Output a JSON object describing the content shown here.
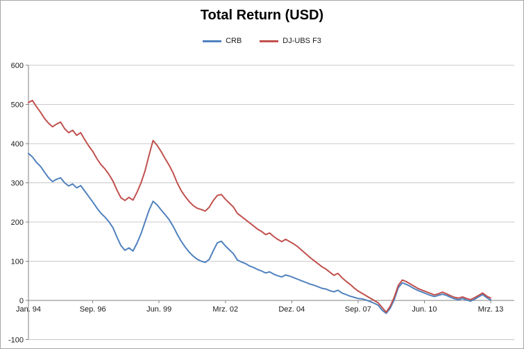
{
  "chart_data": {
    "type": "line",
    "title": "Total Return (USD)",
    "grid": true,
    "legend_position": "top",
    "ylim": [
      -100,
      600
    ],
    "y_ticks": [
      600,
      500,
      400,
      300,
      200,
      100,
      0,
      -100
    ],
    "xlim_months": [
      0,
      230
    ],
    "x_step_months": 2,
    "x_tick_months": [
      0,
      32,
      65,
      98,
      131,
      164,
      197,
      230
    ],
    "x_tick_labels": [
      "Jan. 94",
      "Sep. 96",
      "Jun. 99",
      "Mrz. 02",
      "Dez. 04",
      "Sep. 07",
      "Jun. 10",
      "Mrz. 13"
    ],
    "colors": {
      "grid": "#c9c9c9",
      "axis": "#808080",
      "text": "#1a1a1a",
      "background": "#ffffff",
      "border": "#a6a6a6"
    },
    "series": [
      {
        "name": "CRB",
        "color": "#4f81bd",
        "values": [
          375,
          366,
          352,
          342,
          327,
          313,
          303,
          309,
          313,
          300,
          292,
          297,
          287,
          293,
          279,
          265,
          251,
          236,
          223,
          213,
          201,
          186,
          162,
          140,
          128,
          134,
          126,
          146,
          170,
          200,
          230,
          253,
          244,
          231,
          219,
          206,
          189,
          169,
          151,
          136,
          123,
          113,
          105,
          100,
          97,
          105,
          127,
          147,
          151,
          139,
          129,
          119,
          103,
          98,
          94,
          88,
          84,
          79,
          75,
          70,
          73,
          67,
          63,
          60,
          65,
          62,
          58,
          54,
          50,
          46,
          42,
          39,
          35,
          31,
          29,
          25,
          22,
          26,
          19,
          15,
          11,
          8,
          5,
          4,
          1,
          -3,
          -7,
          -12,
          -25,
          -33,
          -20,
          2,
          32,
          45,
          41,
          36,
          30,
          25,
          21,
          17,
          13,
          10,
          13,
          16,
          13,
          8,
          4,
          2,
          5,
          1,
          -2,
          3,
          9,
          15,
          7,
          1
        ]
      },
      {
        "name": "DJ-UBS F3",
        "color": "#c0504d",
        "values": [
          505,
          510,
          494,
          480,
          464,
          452,
          443,
          450,
          455,
          438,
          428,
          434,
          421,
          428,
          410,
          394,
          380,
          362,
          347,
          336,
          322,
          305,
          282,
          262,
          255,
          263,
          256,
          276,
          300,
          330,
          370,
          408,
          396,
          380,
          362,
          345,
          325,
          300,
          280,
          265,
          252,
          242,
          235,
          232,
          228,
          238,
          255,
          268,
          270,
          258,
          248,
          238,
          222,
          214,
          206,
          198,
          190,
          182,
          176,
          168,
          172,
          163,
          156,
          150,
          156,
          150,
          144,
          137,
          128,
          119,
          110,
          102,
          94,
          86,
          80,
          72,
          64,
          69,
          58,
          49,
          41,
          32,
          24,
          18,
          12,
          6,
          0,
          -6,
          -18,
          -30,
          -15,
          8,
          38,
          52,
          48,
          42,
          36,
          30,
          26,
          22,
          18,
          14,
          17,
          21,
          17,
          12,
          8,
          6,
          9,
          5,
          2,
          7,
          13,
          19,
          11,
          6
        ]
      }
    ]
  }
}
